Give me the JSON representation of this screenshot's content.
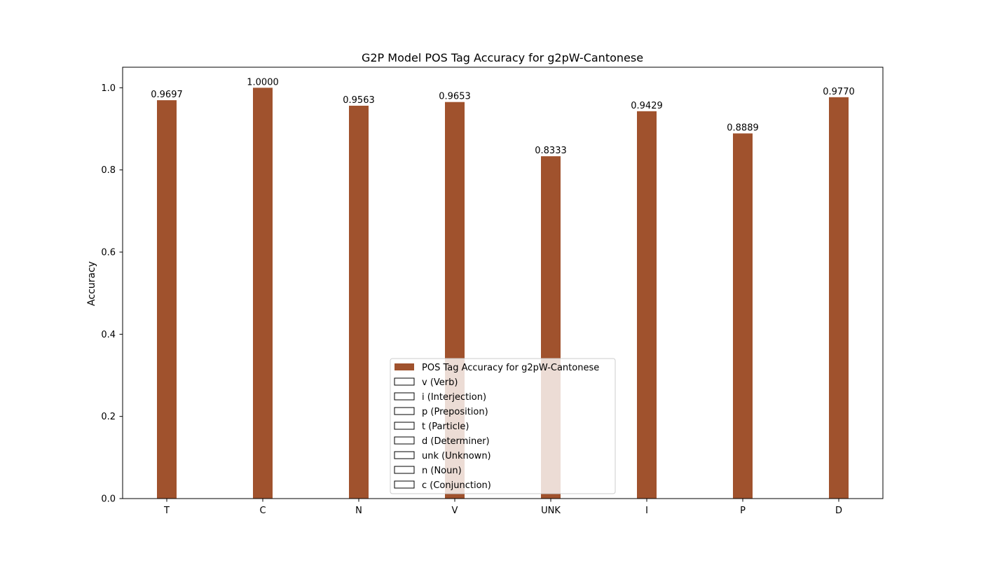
{
  "chart_data": {
    "type": "bar",
    "title": "G2P Model POS Tag Accuracy for g2pW-Cantonese",
    "xlabel": "",
    "ylabel": "Accuracy",
    "ylim": [
      0,
      1.05
    ],
    "yticks": [
      "0.0",
      "0.2",
      "0.4",
      "0.6",
      "0.8",
      "1.0"
    ],
    "categories": [
      "T",
      "C",
      "N",
      "V",
      "UNK",
      "I",
      "P",
      "D"
    ],
    "series": [
      {
        "name": "POS Tag Accuracy for g2pW-Cantonese",
        "color": "#a0522d",
        "values": [
          0.9697,
          1.0,
          0.9563,
          0.9653,
          0.8333,
          0.9429,
          0.8889,
          0.977
        ],
        "value_labels": [
          "0.9697",
          "1.0000",
          "0.9563",
          "0.9653",
          "0.8333",
          "0.9429",
          "0.8889",
          "0.9770"
        ]
      }
    ],
    "legend": {
      "placement": "lower center",
      "entries": [
        {
          "label": "POS Tag Accuracy for g2pW-Cantonese",
          "filled": true
        },
        {
          "label": "v (Verb)",
          "filled": false
        },
        {
          "label": "i (Interjection)",
          "filled": false
        },
        {
          "label": "p (Preposition)",
          "filled": false
        },
        {
          "label": "t (Particle)",
          "filled": false
        },
        {
          "label": "d (Determiner)",
          "filled": false
        },
        {
          "label": "unk (Unknown)",
          "filled": false
        },
        {
          "label": "n (Noun)",
          "filled": false
        },
        {
          "label": "c (Conjunction)",
          "filled": false
        }
      ]
    },
    "grid": false
  }
}
